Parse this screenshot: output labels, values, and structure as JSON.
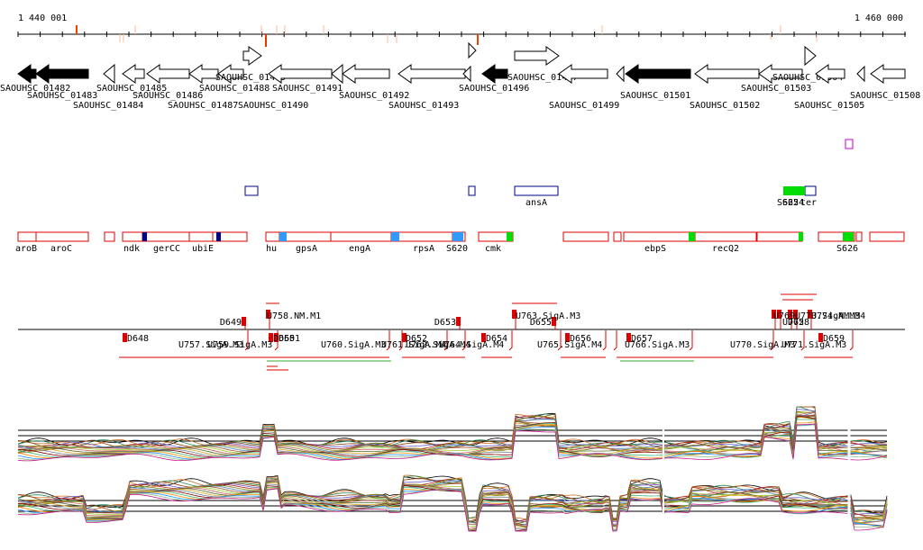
{
  "ruler": {
    "start_label": "1 440 001",
    "end_label": "1 460 000"
  },
  "genes": [
    {
      "name": "SAOUHSC_01482",
      "dir": "R",
      "fill": "#000000"
    },
    {
      "name": "SAOUHSC_01483",
      "dir": "R",
      "fill": "#000000"
    },
    {
      "name": "SAOUHSC_01484",
      "dir": "R",
      "fill": "#ffffff"
    },
    {
      "name": "SAOUHSC_01485",
      "dir": "R",
      "fill": "#ffffff"
    },
    {
      "name": "SAOUHSC_01486",
      "dir": "R",
      "fill": "#ffffff"
    },
    {
      "name": "SAOUHSC_01487",
      "dir": "R",
      "fill": "#ffffff"
    },
    {
      "name": "SAOUHSC_01488",
      "dir": "R",
      "fill": "#ffffff"
    },
    {
      "name": "SAOUHSC_01489",
      "dir": "F",
      "fill": "#ffffff"
    },
    {
      "name": "SAOUHSC_01490",
      "dir": "R",
      "fill": "#ffffff"
    },
    {
      "name": "SAOUHSC_01491",
      "dir": "R",
      "fill": "#ffffff"
    },
    {
      "name": "SAOUHSC_01492",
      "dir": "R",
      "fill": "#ffffff"
    },
    {
      "name": "SAOUHSC_01493",
      "dir": "R",
      "fill": "#ffffff"
    },
    {
      "name": "SAOUHSC_01496",
      "dir": "R",
      "fill": "#000000"
    },
    {
      "name": "SAOUHSC_01497",
      "dir": "F",
      "fill": "#ffffff"
    },
    {
      "name": "SAOUHSC_01499",
      "dir": "R",
      "fill": "#ffffff"
    },
    {
      "name": "SAOUHSC_01501",
      "dir": "R",
      "fill": "#000000"
    },
    {
      "name": "SAOUHSC_01502",
      "dir": "R",
      "fill": "#ffffff"
    },
    {
      "name": "SAOUHSC_01503",
      "dir": "R",
      "fill": "#ffffff"
    },
    {
      "name": "SAOUHSC_01504",
      "dir": "F",
      "fill": "#ffffff"
    },
    {
      "name": "SAOUHSC_01505",
      "dir": "R",
      "fill": "#ffffff"
    },
    {
      "name": "SAOUHSC_01508",
      "dir": "R",
      "fill": "#ffffff"
    }
  ],
  "blue_features": [
    {
      "name": "ansA"
    },
    {
      "name": "S625"
    },
    {
      "name": "S624"
    },
    {
      "name": "ter"
    }
  ],
  "red_features": [
    {
      "name": "aroB"
    },
    {
      "name": "aroC"
    },
    {
      "name": "ndk"
    },
    {
      "name": "gerCC"
    },
    {
      "name": "ubiE"
    },
    {
      "name": "hu"
    },
    {
      "name": "gpsA"
    },
    {
      "name": "engA"
    },
    {
      "name": "rpsA"
    },
    {
      "name": "S620"
    },
    {
      "name": "cmk"
    },
    {
      "name": "ebpS"
    },
    {
      "name": "recQ2"
    },
    {
      "name": "S626"
    }
  ],
  "transcripts": {
    "above": [
      {
        "name": "D649"
      },
      {
        "name": "U758.NM.M1"
      },
      {
        "name": "D653"
      },
      {
        "name": "U763.SigA.M3"
      },
      {
        "name": "D655"
      },
      {
        "name": "U769"
      },
      {
        "name": "U772"
      },
      {
        "name": "D658"
      },
      {
        "name": "U773.SigA.M3"
      },
      {
        "name": "U774.NM.M4"
      }
    ],
    "below": [
      {
        "name": "D648"
      },
      {
        "name": "U757.SigA.M3"
      },
      {
        "name": "U759.SigA.M3"
      },
      {
        "name": "D650"
      },
      {
        "name": "D651"
      },
      {
        "name": "U760.SigA.M3"
      },
      {
        "name": "D652"
      },
      {
        "name": "U761.SigA.M4"
      },
      {
        "name": "U762.SigA.M4"
      },
      {
        "name": "U764.SigA.M4"
      },
      {
        "name": "D654"
      },
      {
        "name": "U765.SigA.M4"
      },
      {
        "name": "D656"
      },
      {
        "name": "D657"
      },
      {
        "name": "U766.SigA.M3"
      },
      {
        "name": "U770.SigA.M3"
      },
      {
        "name": "U771.SigA.M3"
      },
      {
        "name": "D659"
      }
    ]
  },
  "colors": {
    "gene_outline": "#000000",
    "feature_red": "#dd0000",
    "feature_blue": "#000088",
    "highlight_green": "#00dd00",
    "highlight_blue": "#3399ff",
    "highlight_navy": "#000088",
    "marker_magenta": "#cc00cc",
    "transcript_green": "#33aa33"
  }
}
